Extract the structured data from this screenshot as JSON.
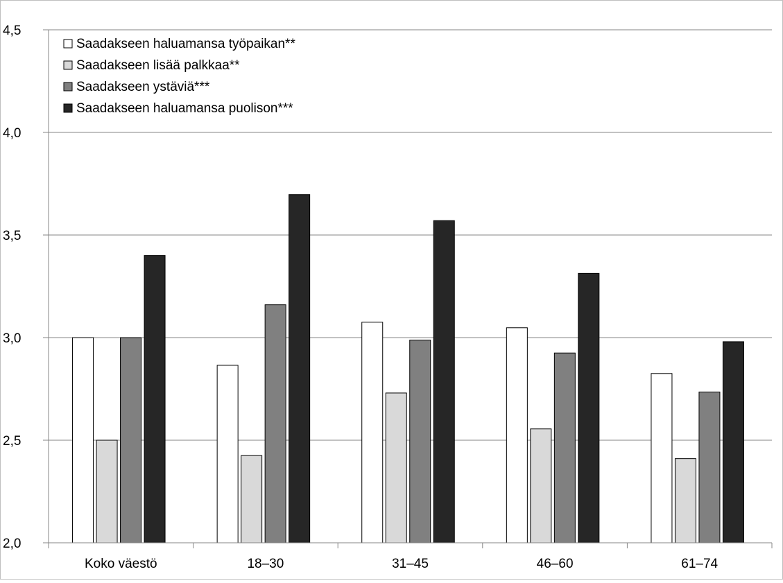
{
  "chart_data": {
    "type": "bar",
    "categories": [
      "Koko väestö",
      "18–30",
      "31–45",
      "46–60",
      "61–74"
    ],
    "series": [
      {
        "name": "Saadakseen haluamansa työpaikan**",
        "values": [
          3.0,
          2.865,
          3.075,
          3.048,
          2.825
        ],
        "color": "#ffffff"
      },
      {
        "name": "Saadakseen lisää palkkaa**",
        "values": [
          2.5,
          2.425,
          2.73,
          2.555,
          2.41
        ],
        "color": "#d9d9d9"
      },
      {
        "name": "Saadakseen ystäviä***",
        "values": [
          3.0,
          3.16,
          2.988,
          2.925,
          2.735
        ],
        "color": "#808080"
      },
      {
        "name": "Saadakseen haluamansa puolison***",
        "values": [
          3.4,
          3.697,
          3.57,
          3.313,
          2.98
        ],
        "color": "#262626"
      }
    ],
    "ylim": [
      2.0,
      4.5
    ],
    "yticks": [
      "2,0",
      "2,5",
      "3,0",
      "3,5",
      "4,0",
      "4,5"
    ],
    "grid": true,
    "legend_position": "top-left"
  }
}
